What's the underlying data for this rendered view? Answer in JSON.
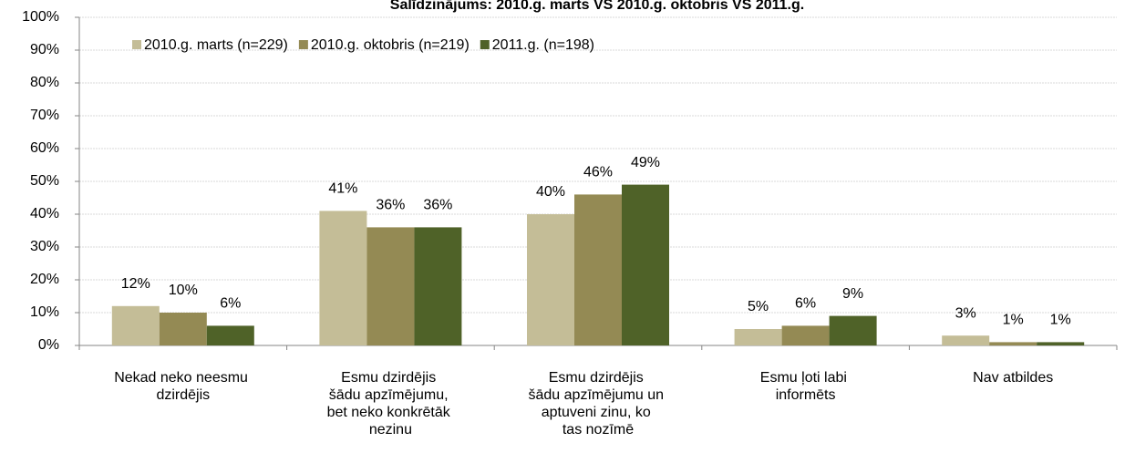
{
  "chart_data": {
    "type": "bar",
    "title": "Salīdzinājums: 2010.g. marts VS 2010.g. oktobris VS 2011.g.",
    "categories": [
      "Nekad neko neesmu dzirdējis",
      "Esmu dzirdējis šādu apzīmējumu, bet neko konkrētāk nezinu",
      "Esmu dzirdējis šādu apzīmējumu un aptuveni zinu, ko tas nozīmē",
      "Esmu ļoti labi informēts",
      "Nav atbildes"
    ],
    "series": [
      {
        "name": "2010.g. marts (n=229)",
        "color": "#c4bd97",
        "values": [
          12,
          41,
          40,
          5,
          3
        ],
        "value_labels": [
          "12%",
          "41%",
          "40%",
          "5%",
          "3%"
        ]
      },
      {
        "name": "2010.g. oktobris (n=219)",
        "color": "#948a54",
        "values": [
          10,
          36,
          46,
          6,
          1
        ],
        "value_labels": [
          "10%",
          "36%",
          "46%",
          "6%",
          "1%"
        ]
      },
      {
        "name": "2011.g. (n=198)",
        "color": "#4f6228",
        "values": [
          6,
          36,
          49,
          9,
          1
        ],
        "value_labels": [
          "6%",
          "36%",
          "49%",
          "9%",
          "1%"
        ]
      }
    ],
    "ylim": [
      0,
      100
    ],
    "yticks": [
      {
        "value": 0,
        "label": "0%"
      },
      {
        "value": 10,
        "label": "10%"
      },
      {
        "value": 20,
        "label": "20%"
      },
      {
        "value": 30,
        "label": "30%"
      },
      {
        "value": 40,
        "label": "40%"
      },
      {
        "value": 50,
        "label": "50%"
      },
      {
        "value": 60,
        "label": "60%"
      },
      {
        "value": 70,
        "label": "70%"
      },
      {
        "value": 80,
        "label": "80%"
      },
      {
        "value": 90,
        "label": "90%"
      },
      {
        "value": 100,
        "label": "100%"
      }
    ],
    "grid": true,
    "legend": "top-left"
  }
}
